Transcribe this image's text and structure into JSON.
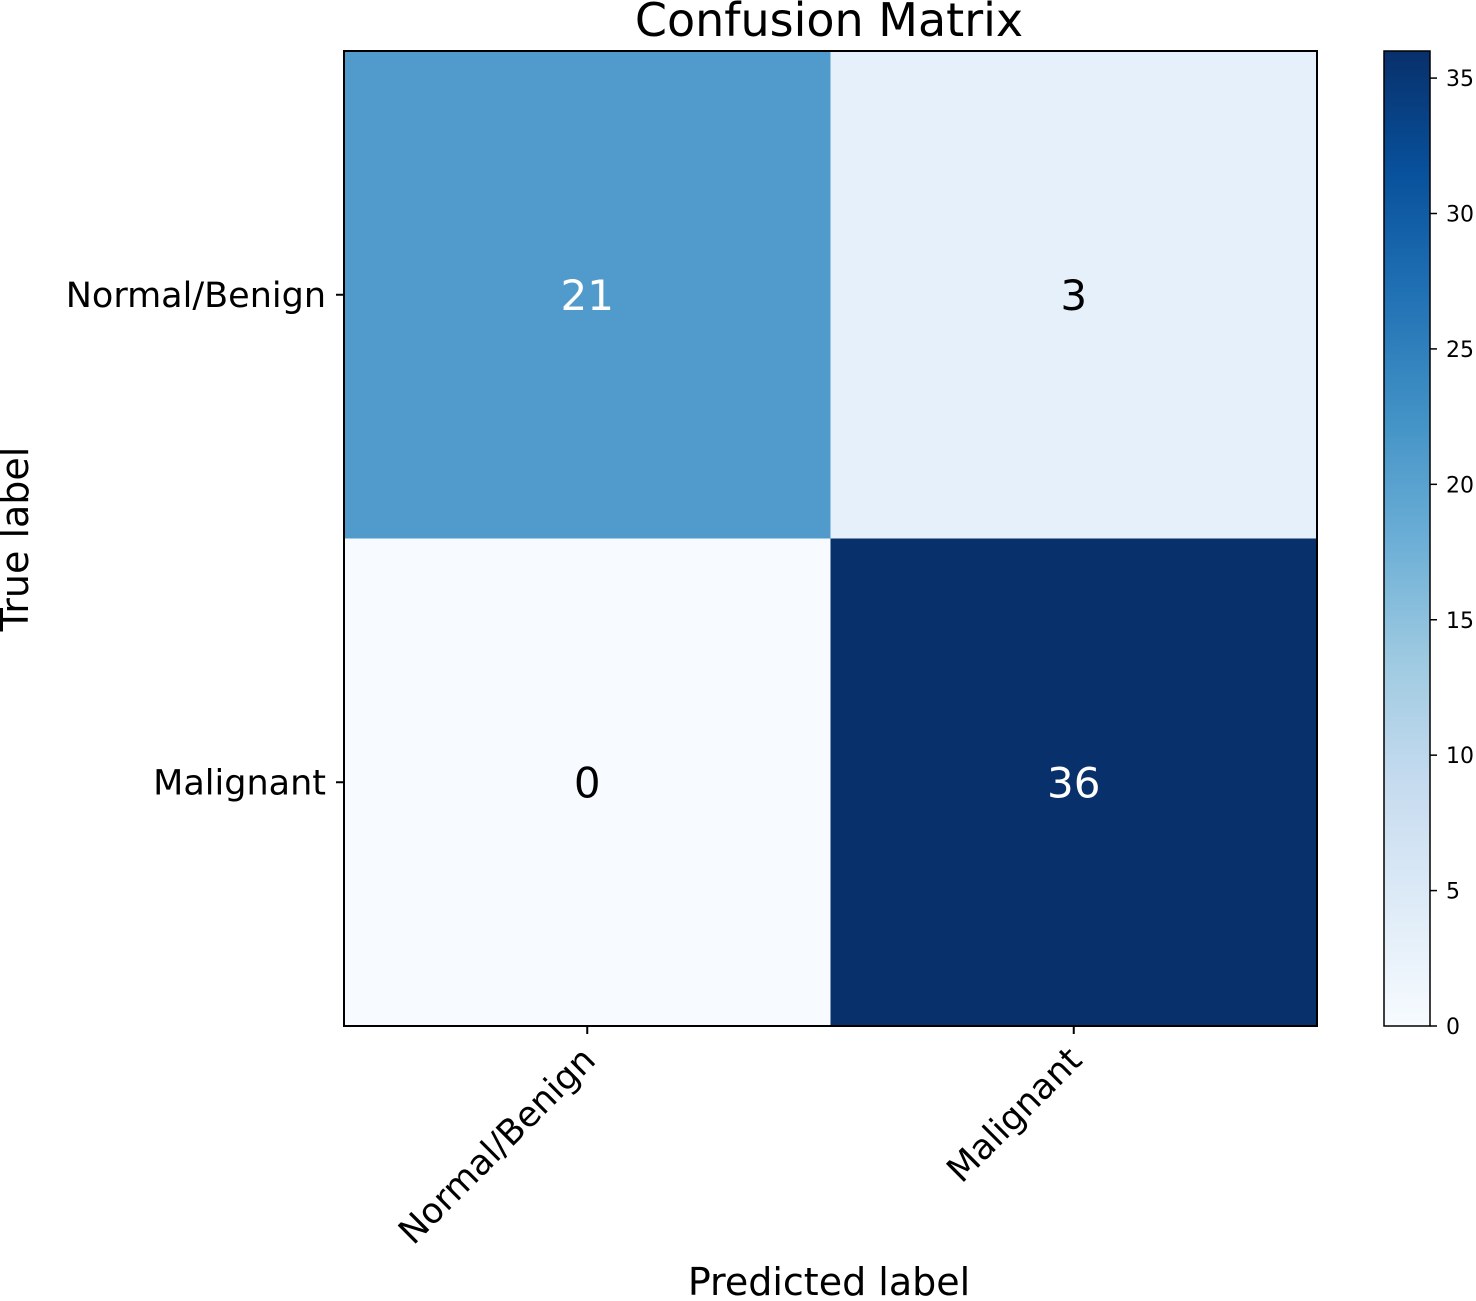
{
  "chart_data": {
    "type": "heatmap",
    "title": "Confusion Matrix",
    "xlabel": "Predicted label",
    "ylabel": "True label",
    "x_categories": [
      "Normal/Benign",
      "Malignant"
    ],
    "y_categories": [
      "Normal/Benign",
      "Malignant"
    ],
    "values": [
      [
        21,
        3
      ],
      [
        0,
        36
      ]
    ],
    "colormap": "Blues",
    "colorbar": {
      "min": 0,
      "max": 36,
      "ticks": [
        0,
        5,
        10,
        15,
        20,
        25,
        30,
        35
      ],
      "tick_labels": [
        "0",
        "5",
        "10",
        "15",
        "20",
        "25",
        "30",
        "35"
      ]
    },
    "text_colors": {
      "dark": "#000000",
      "light": "#ffffff"
    },
    "grid": false,
    "legend": "colorbar-right"
  }
}
